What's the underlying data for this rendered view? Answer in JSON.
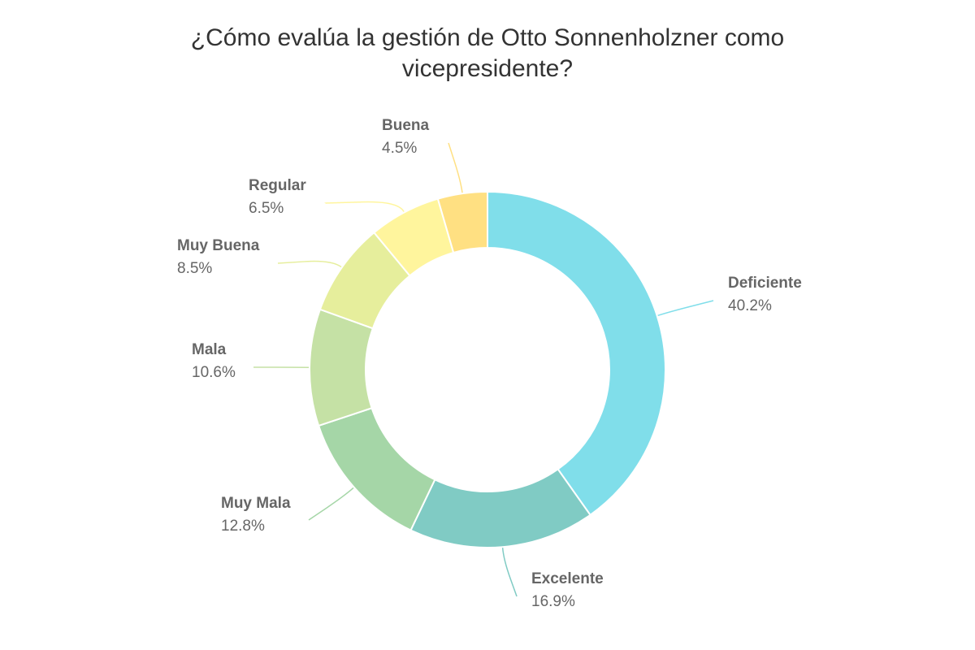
{
  "chart_data": {
    "type": "pie",
    "donut": true,
    "title": "¿Cómo evalúa la gestión de Otto Sonnenholzner como vicepresidente?",
    "slices": [
      {
        "label": "Deficiente",
        "value": 40.2,
        "value_label": "40.2%",
        "color": "#80DEEA"
      },
      {
        "label": "Excelente",
        "value": 16.9,
        "value_label": "16.9%",
        "color": "#80CBC4"
      },
      {
        "label": "Muy Mala",
        "value": 12.8,
        "value_label": "12.8%",
        "color": "#A5D6A7"
      },
      {
        "label": "Mala",
        "value": 10.6,
        "value_label": "10.6%",
        "color": "#C5E1A5"
      },
      {
        "label": "Muy Buena",
        "value": 8.5,
        "value_label": "8.5%",
        "color": "#E6EE9C"
      },
      {
        "label": "Regular",
        "value": 6.5,
        "value_label": "6.5%",
        "color": "#FFF59D"
      },
      {
        "label": "Buena",
        "value": 4.5,
        "value_label": "4.5%",
        "color": "#FFE082"
      }
    ],
    "legend": "none",
    "label_placement": "outside-with-leader-lines"
  }
}
